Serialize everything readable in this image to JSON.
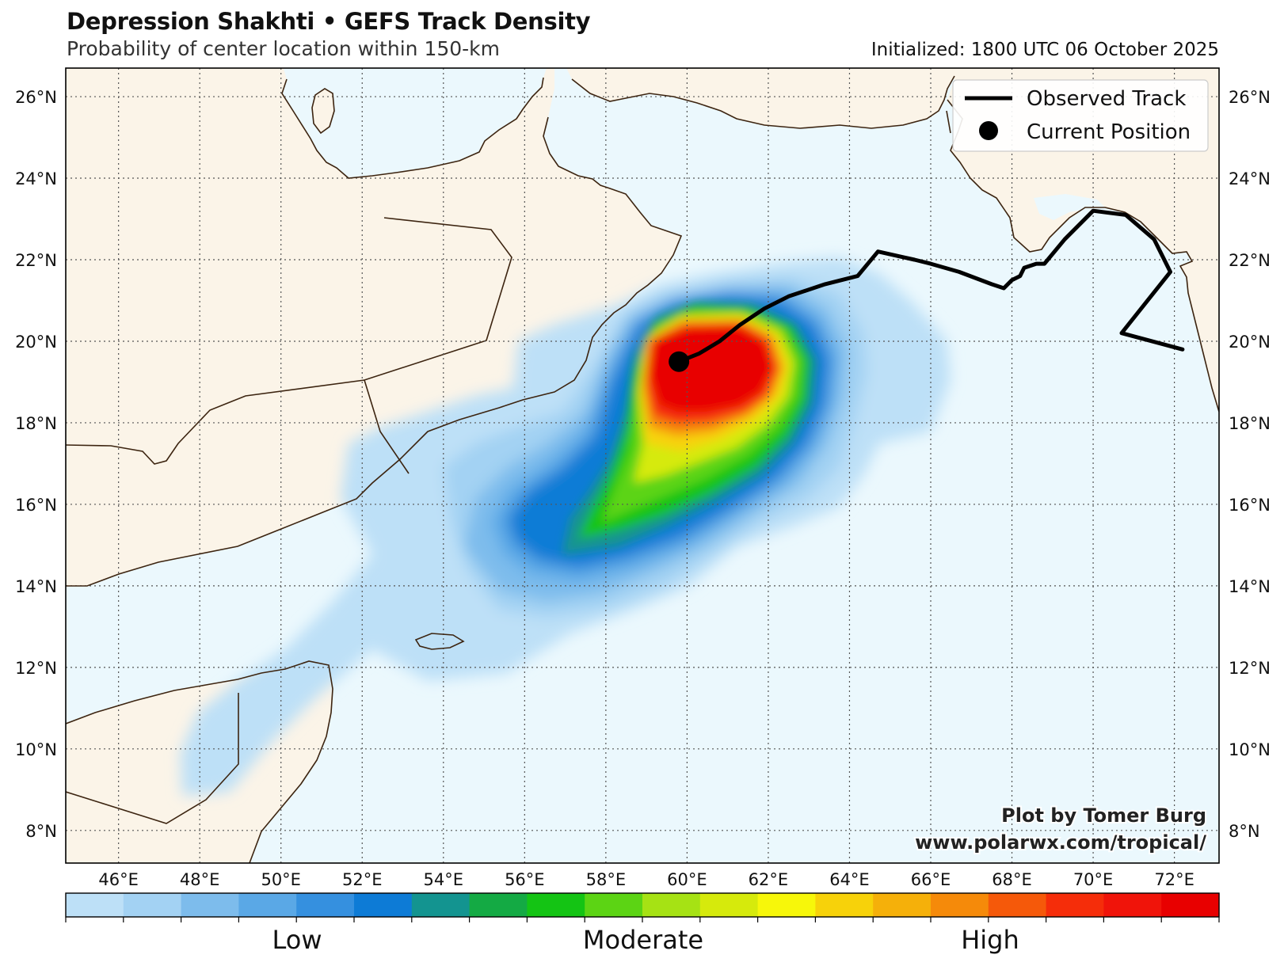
{
  "header": {
    "title": "Depression Shakhti • GEFS Track Density",
    "subtitle": "Probability of center location within 150-km",
    "initialized": "Initialized: 1800 UTC 06 October 2025"
  },
  "legend": {
    "items": [
      {
        "label": "Observed Track",
        "symbol": "line",
        "color": "#000000"
      },
      {
        "label": "Current Position",
        "symbol": "dot",
        "color": "#000000"
      }
    ]
  },
  "credit": {
    "line1": "Plot by Tomer Burg",
    "line2": "www.polarwx.com/tropical/"
  },
  "axes": {
    "lon_range": [
      44.7,
      73.1
    ],
    "lat_range": [
      7.2,
      26.7
    ],
    "lon_ticks": [
      "46°E",
      "48°E",
      "50°E",
      "52°E",
      "54°E",
      "56°E",
      "58°E",
      "60°E",
      "62°E",
      "64°E",
      "66°E",
      "68°E",
      "70°E",
      "72°E"
    ],
    "lat_ticks": [
      "8°N",
      "10°N",
      "12°N",
      "14°N",
      "16°N",
      "18°N",
      "20°N",
      "22°N",
      "24°N",
      "26°N"
    ],
    "grid": "dotted"
  },
  "colorbar": {
    "colors": [
      "#bde0f7",
      "#a3d2f3",
      "#7dbcec",
      "#5aa8e6",
      "#3590df",
      "#0d7bd6",
      "#139490",
      "#14aa44",
      "#14c414",
      "#5cd414",
      "#a6e214",
      "#d6ea0c",
      "#f7f70a",
      "#f7d20a",
      "#f5b00a",
      "#f58a0a",
      "#f5590a",
      "#f52d0a",
      "#f0140a",
      "#e80000"
    ],
    "labels": [
      "Low",
      "Moderate",
      "High"
    ]
  },
  "colors": {
    "ocean": "#ebf8fd",
    "land": "#fbf4e8",
    "border": "#3c2410"
  },
  "observed_track": [
    [
      72.2,
      19.8
    ],
    [
      70.7,
      20.2
    ],
    [
      71.9,
      21.7
    ],
    [
      71.5,
      22.5
    ],
    [
      70.8,
      23.1
    ],
    [
      70.0,
      23.2
    ],
    [
      69.3,
      22.5
    ],
    [
      68.8,
      21.9
    ],
    [
      68.6,
      21.9
    ],
    [
      68.3,
      21.8
    ],
    [
      68.2,
      21.6
    ],
    [
      68.0,
      21.5
    ],
    [
      67.9,
      21.4
    ],
    [
      67.8,
      21.3
    ],
    [
      67.5,
      21.4
    ],
    [
      66.7,
      21.7
    ],
    [
      66.0,
      21.9
    ],
    [
      65.6,
      22.0
    ],
    [
      64.7,
      22.2
    ],
    [
      64.2,
      21.6
    ],
    [
      63.4,
      21.4
    ],
    [
      62.5,
      21.1
    ],
    [
      61.9,
      20.8
    ],
    [
      61.3,
      20.4
    ],
    [
      60.8,
      20.0
    ],
    [
      60.3,
      19.7
    ],
    [
      59.8,
      19.5
    ]
  ],
  "current_position": [
    59.8,
    19.5
  ]
}
